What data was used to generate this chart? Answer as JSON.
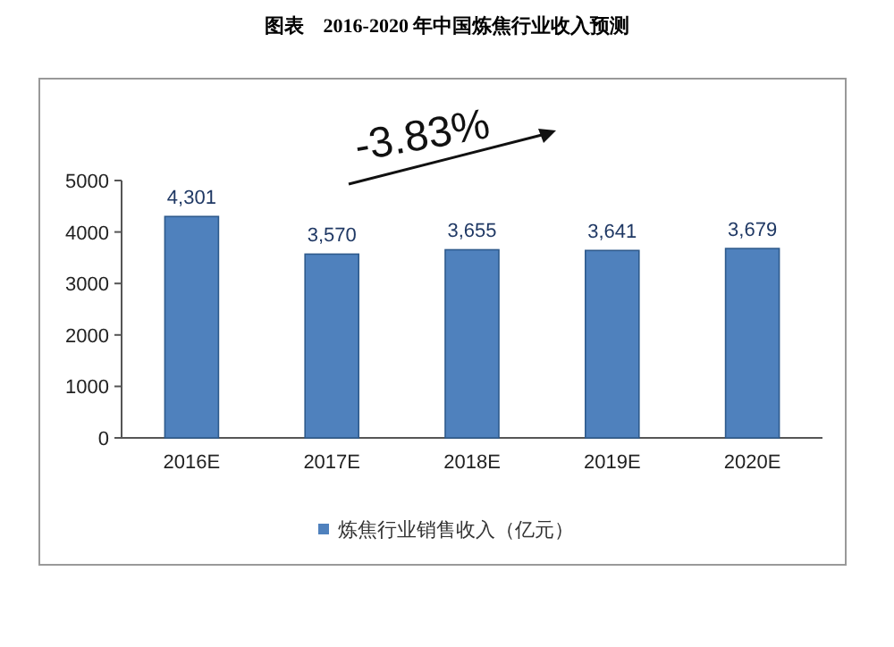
{
  "chart_data": {
    "type": "bar",
    "title": "图表　2016-2020 年中国炼焦行业收入预测",
    "categories": [
      "2016E",
      "2017E",
      "2018E",
      "2019E",
      "2020E"
    ],
    "series": [
      {
        "name": "炼焦行业销售收入（亿元）",
        "color": "#4f81bd",
        "values": [
          4301,
          3570,
          3655,
          3641,
          3679
        ],
        "value_labels": [
          "4,301",
          "3,570",
          "3,655",
          "3,641",
          "3,679"
        ]
      }
    ],
    "ylim": [
      0,
      5000
    ],
    "yticks": [
      0,
      1000,
      2000,
      3000,
      4000,
      5000
    ],
    "legend": "bottom",
    "annotations": [
      "-3.83%"
    ]
  }
}
